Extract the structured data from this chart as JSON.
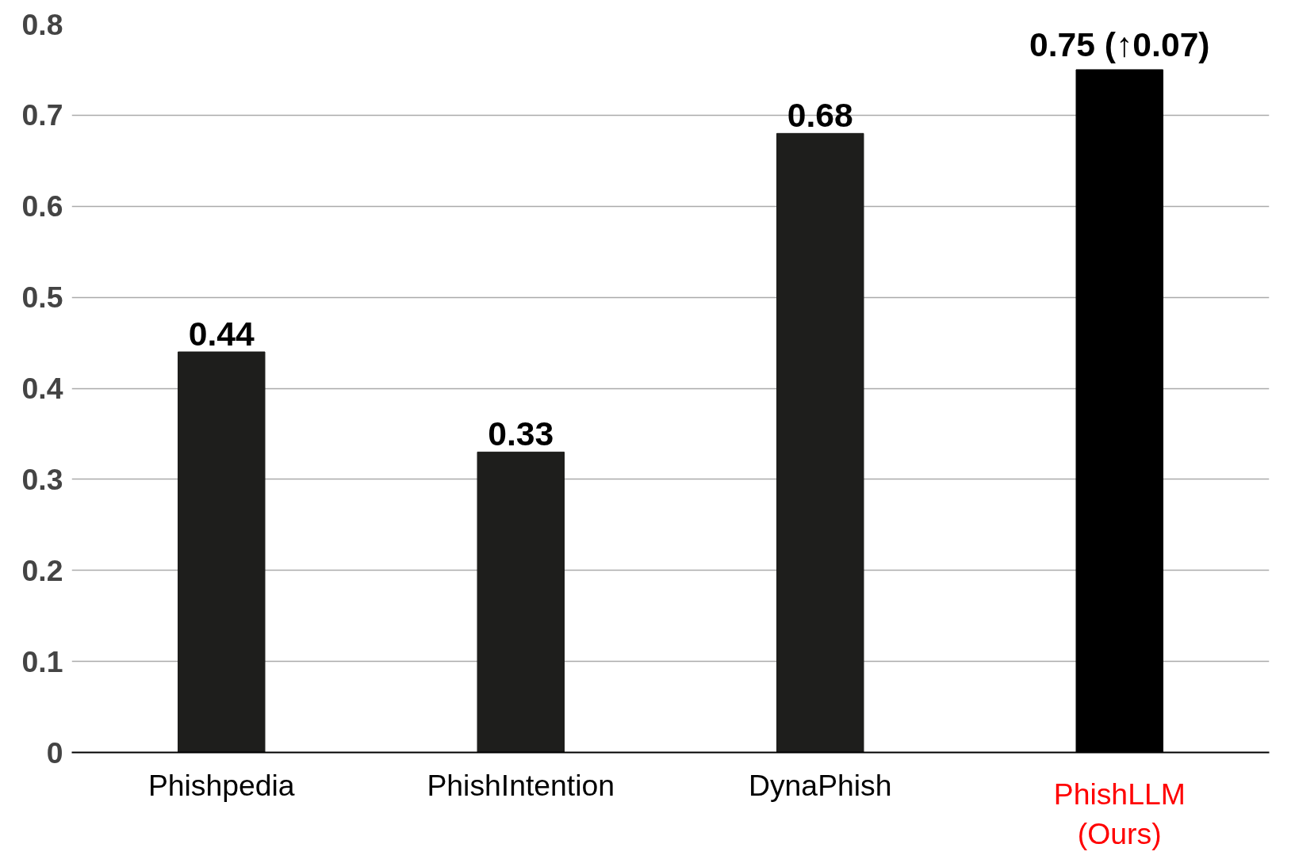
{
  "chart_data": {
    "type": "bar",
    "categories": [
      "Phishpedia",
      "PhishIntention",
      "DynaPhish",
      "PhishLLM\n(Ours)"
    ],
    "values": [
      0.44,
      0.33,
      0.68,
      0.75
    ],
    "colors": [
      "#1e1e1c",
      "#1e1e1c",
      "#1e1e1c",
      "#000000"
    ],
    "value_labels": [
      "0.44",
      "0.33",
      "0.68",
      "0.75 (↑0.07)"
    ],
    "ylim": [
      0,
      0.8
    ],
    "yticks": [
      0,
      0.1,
      0.2,
      0.3,
      0.4,
      0.5,
      0.6,
      0.7,
      0.8
    ],
    "grid": "y"
  }
}
